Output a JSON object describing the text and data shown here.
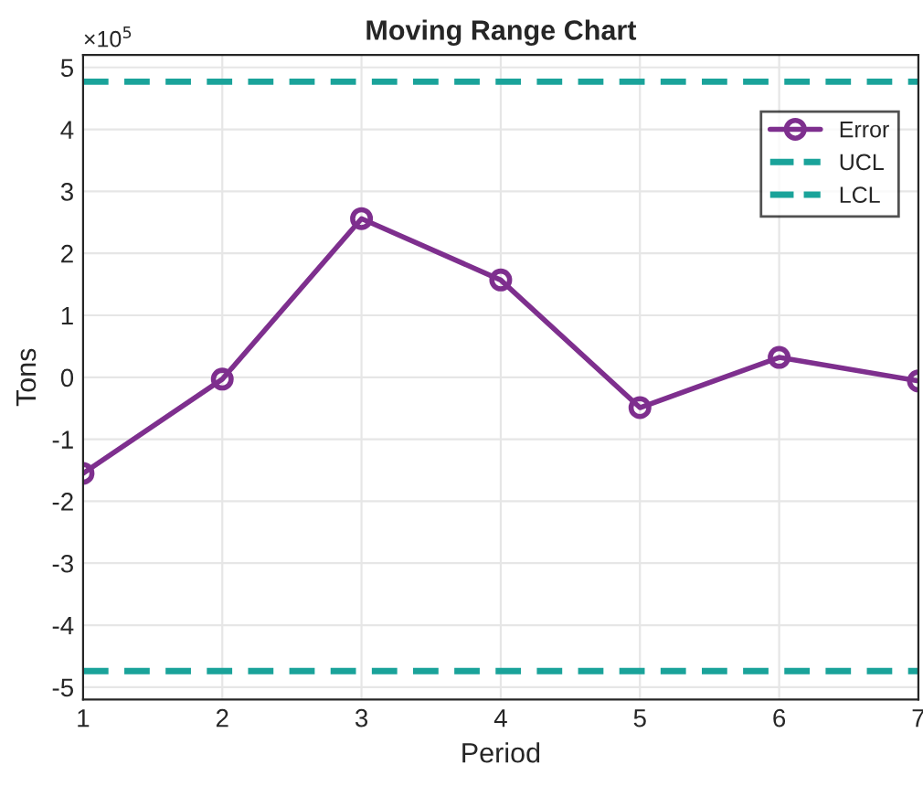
{
  "chart_data": {
    "type": "line",
    "title": "Moving Range Chart",
    "xlabel": "Period",
    "ylabel": "Tons",
    "x": [
      1,
      2,
      3,
      4,
      5,
      6,
      7
    ],
    "series": [
      {
        "name": "Error",
        "color": "#7e2f8e",
        "values": [
          -1.55,
          -0.03,
          2.56,
          1.57,
          -0.49,
          0.32,
          -0.06
        ]
      }
    ],
    "ref_lines": [
      {
        "axis": "y",
        "value": 4.77,
        "label": "UCL",
        "color": "#1aa39a",
        "line_style": "dashed"
      },
      {
        "axis": "y",
        "value": -4.74,
        "label": "LCL",
        "color": "#1aa39a",
        "line_style": "dashed"
      }
    ],
    "xlim": [
      1,
      7
    ],
    "xticks": [
      1,
      2,
      3,
      4,
      5,
      6,
      7
    ],
    "ylim": [
      -5.2,
      5.2
    ],
    "yticks": [
      -5,
      -4,
      -3,
      -2,
      -1,
      0,
      1,
      2,
      3,
      4,
      5
    ],
    "annotations": [
      "×10$^{5}$"
    ],
    "grid": true,
    "legend": "top right",
    "marker": "circle",
    "line_style": "solid"
  }
}
